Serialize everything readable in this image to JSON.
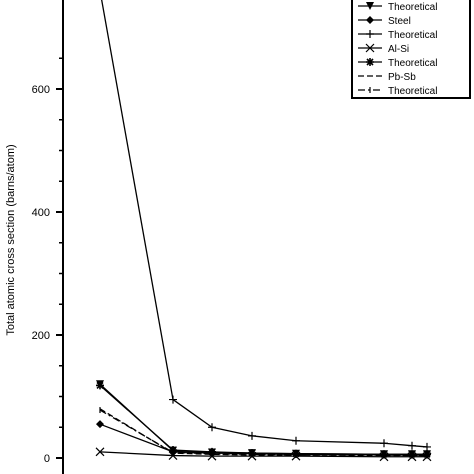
{
  "chart_data": {
    "type": "line",
    "title": "",
    "ylabel": "Total atomic cross section (barns/atom)",
    "xlabel": "",
    "ylim": [
      0,
      700
    ],
    "yticks": [
      0,
      200,
      400,
      600
    ],
    "ytick_labels": [
      "0",
      "200",
      "400",
      "600"
    ],
    "x": [
      1,
      2,
      3,
      4,
      5,
      6,
      7,
      8
    ],
    "grid": false,
    "legend_position": "top-right",
    "series": [
      {
        "name": "Theoretical",
        "marker": "triangle-down",
        "dash": "solid",
        "values": [
          120,
          12,
          9,
          8,
          7,
          6,
          6,
          6
        ]
      },
      {
        "name": "Steel",
        "marker": "diamond",
        "dash": "solid",
        "values": [
          55,
          10,
          8,
          7,
          6,
          5,
          5,
          5
        ]
      },
      {
        "name": "Theoretical",
        "marker": "plus",
        "dash": "solid",
        "values": [
          760,
          95,
          50,
          36,
          28,
          24,
          20,
          18
        ]
      },
      {
        "name": "Al-Si",
        "marker": "x",
        "dash": "solid",
        "values": [
          10,
          4,
          3,
          3,
          3,
          2,
          2,
          2
        ]
      },
      {
        "name": "Theoretical",
        "marker": "star",
        "dash": "solid",
        "values": [
          118,
          13,
          10,
          8,
          7,
          6,
          6,
          6
        ]
      },
      {
        "name": "Pb-Sb",
        "marker": "none",
        "dash": "dashed",
        "values": [
          80,
          8,
          6,
          5,
          5,
          4,
          4,
          4
        ]
      },
      {
        "name": "Theoretical",
        "marker": "bar",
        "dash": "dashdot",
        "values": [
          78,
          9,
          7,
          6,
          5,
          5,
          4,
          4
        ]
      }
    ]
  }
}
